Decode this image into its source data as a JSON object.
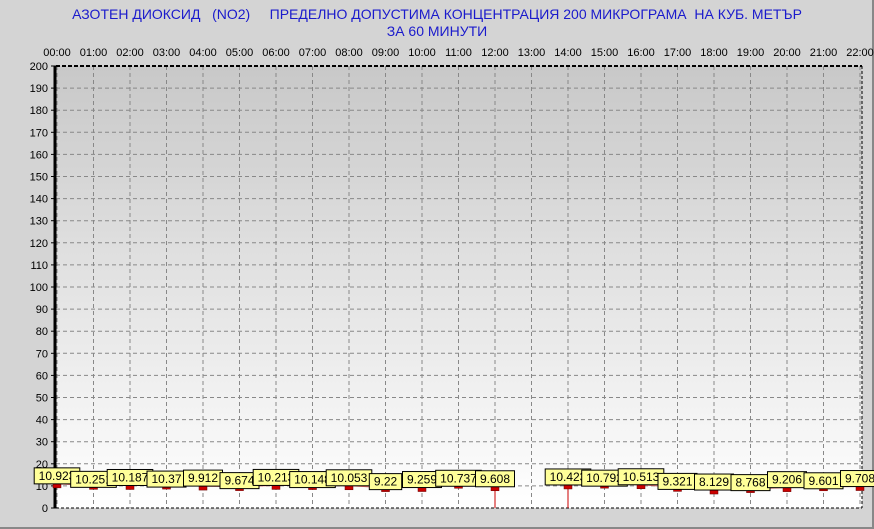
{
  "chart_data": {
    "type": "line",
    "title": "АЗОТЕН ДИОКСИД   (NO2)     ПРЕДЕЛНО ДОПУСТИМА КОНЦЕНТРАЦИЯ 200 МИКРОГРАМА  НА КУБ. МЕТЪР",
    "subtitle": "ЗА 60 МИНУТИ",
    "categories": [
      "00:00",
      "01:00",
      "02:00",
      "03:00",
      "04:00",
      "05:00",
      "06:00",
      "07:00",
      "08:00",
      "09:00",
      "10:00",
      "11:00",
      "12:00",
      "13:00",
      "14:00",
      "15:00",
      "16:00",
      "17:00",
      "18:00",
      "19:00",
      "20:00",
      "21:00",
      "22:00"
    ],
    "values": [
      10.923,
      10.251,
      10.187,
      10.37,
      9.912,
      9.674,
      10.213,
      10.148,
      10.053,
      9.22,
      9.259,
      10.737,
      9.608,
      null,
      10.423,
      10.792,
      10.513,
      9.321,
      8.129,
      8.768,
      9.206,
      9.601,
      9.708
    ],
    "labels": [
      "10.923",
      "10.251",
      "10.187",
      "10.37",
      "9.912",
      "9.674",
      "10.213",
      "10.148",
      "10.053",
      "9.22",
      "9.259",
      "10.737",
      "9.608",
      "",
      "10.423",
      "10.792",
      "10.513",
      "9.321",
      "8.129",
      "8.768",
      "9.206",
      "9.601",
      "9.708"
    ],
    "ylim": [
      0,
      200
    ],
    "yticks": [
      0,
      10,
      20,
      30,
      40,
      50,
      60,
      70,
      80,
      90,
      100,
      110,
      120,
      130,
      140,
      150,
      160,
      170,
      180,
      190,
      200
    ],
    "xaxis_position": "top",
    "grid": true,
    "colors": {
      "marker": "#cc0000",
      "label_bg": "#ffff99",
      "title": "#1a1acc"
    }
  }
}
